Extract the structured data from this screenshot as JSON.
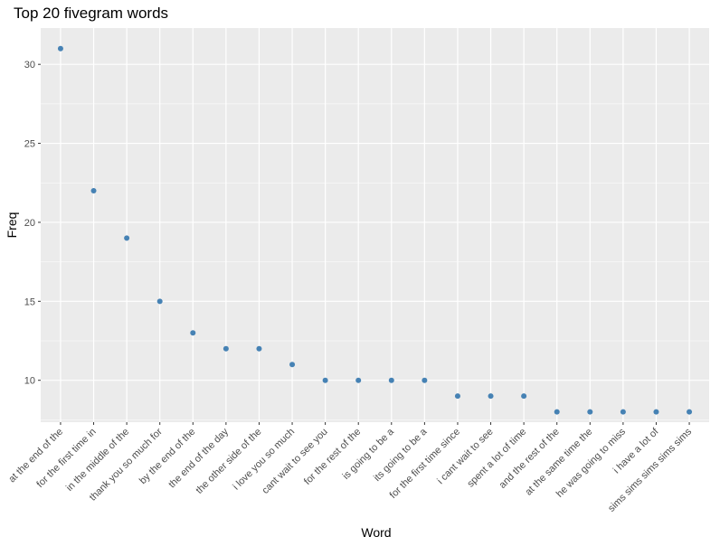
{
  "chart_data": {
    "type": "scatter",
    "title": "Top 20 fivegram words",
    "xlabel": "Word",
    "ylabel": "Freq",
    "categories": [
      "at the end of the",
      "for the first time in",
      "in the middle of the",
      "thank you so much for",
      "by the end of the",
      "the end of the day",
      "the other side of the",
      "i love you so much",
      "cant wait to see you",
      "for the rest of the",
      "is going to be a",
      "its going to be a",
      "for the first time since",
      "i cant wait to see",
      "spent a lot of time",
      "and the rest of the",
      "at the same time the",
      "he was going to miss",
      "i have a lot of",
      "sims sims sims sims sims"
    ],
    "values": [
      31,
      22,
      19,
      15,
      13,
      12,
      12,
      11,
      10,
      10,
      10,
      10,
      9,
      9,
      9,
      8,
      8,
      8,
      8,
      8
    ],
    "yticks": [
      10,
      15,
      20,
      25,
      30
    ],
    "ylim": [
      7.35,
      32.3
    ],
    "grid": true,
    "point_color": "#4682b4",
    "panel_color": "#ebebeb",
    "grid_color": "#ffffff"
  }
}
